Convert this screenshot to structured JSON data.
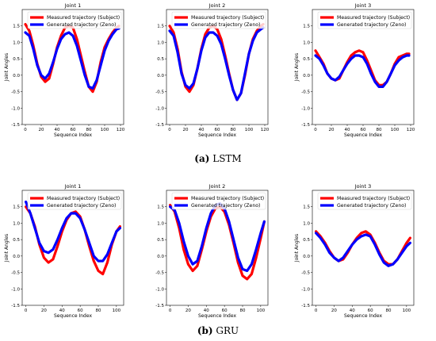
{
  "captions": [
    {
      "tag": "(a)",
      "text": "LSTM"
    },
    {
      "tag": "(b)",
      "text": "GRU"
    }
  ],
  "colors": {
    "measured": "#ff0000",
    "generated": "#0000ff"
  },
  "chart_data": [
    {
      "type": "line",
      "title": "Joint 1",
      "xlabel": "Sequence Index",
      "ylabel": "Joint Angles",
      "xlim": [
        -4,
        124
      ],
      "ylim": [
        -1.5,
        2.0
      ],
      "xticks": [
        0,
        20,
        40,
        60,
        80,
        100,
        120
      ],
      "yticks": [
        -1.5,
        -1.0,
        -0.5,
        0.0,
        0.5,
        1.0,
        1.5
      ],
      "series": [
        {
          "name": "Measured trajectory (Subject)",
          "x": [
            0,
            5,
            10,
            15,
            20,
            25,
            30,
            35,
            40,
            45,
            50,
            55,
            60,
            65,
            70,
            75,
            80,
            85,
            90,
            95,
            100,
            105,
            110,
            115,
            118
          ],
          "values": [
            1.55,
            1.35,
            0.9,
            0.35,
            -0.05,
            -0.2,
            -0.1,
            0.35,
            0.85,
            1.2,
            1.45,
            1.5,
            1.45,
            1.1,
            0.6,
            0.1,
            -0.35,
            -0.5,
            -0.2,
            0.4,
            0.85,
            1.1,
            1.3,
            1.45,
            1.5
          ]
        },
        {
          "name": "Generated trajectory (Zeno)",
          "x": [
            0,
            5,
            10,
            15,
            20,
            25,
            30,
            35,
            40,
            45,
            50,
            55,
            60,
            65,
            70,
            75,
            80,
            85,
            90,
            95,
            100,
            105,
            110,
            115,
            118
          ],
          "values": [
            1.3,
            1.2,
            0.8,
            0.3,
            0.0,
            -0.1,
            0.05,
            0.4,
            0.8,
            1.1,
            1.25,
            1.3,
            1.2,
            0.9,
            0.45,
            0.0,
            -0.35,
            -0.4,
            -0.15,
            0.3,
            0.75,
            1.05,
            1.25,
            1.4,
            1.42
          ]
        }
      ],
      "legend": "top"
    },
    {
      "type": "line",
      "title": "Joint 2",
      "xlabel": "Sequence Index",
      "ylabel": "",
      "xlim": [
        -4,
        124
      ],
      "ylim": [
        -1.5,
        2.0
      ],
      "xticks": [
        0,
        20,
        40,
        60,
        80,
        100,
        120
      ],
      "yticks": [
        -1.5,
        -1.0,
        -0.5,
        0.0,
        0.5,
        1.0,
        1.5
      ],
      "series": [
        {
          "name": "Measured trajectory (Subject)",
          "x": [
            0,
            5,
            10,
            15,
            20,
            25,
            30,
            35,
            40,
            45,
            50,
            55,
            60,
            65,
            70,
            75,
            80,
            85,
            90,
            95,
            100,
            105,
            110,
            115,
            118
          ],
          "values": [
            1.5,
            1.3,
            0.8,
            0.1,
            -0.35,
            -0.5,
            -0.3,
            0.2,
            0.8,
            1.25,
            1.45,
            1.5,
            1.4,
            1.1,
            0.6,
            0.05,
            -0.45,
            -0.75,
            -0.55,
            0.0,
            0.65,
            1.1,
            1.35,
            1.5,
            1.55
          ]
        },
        {
          "name": "Generated trajectory (Zeno)",
          "x": [
            0,
            5,
            10,
            15,
            20,
            25,
            30,
            35,
            40,
            45,
            50,
            55,
            60,
            65,
            70,
            75,
            80,
            85,
            90,
            95,
            100,
            105,
            110,
            115,
            118
          ],
          "values": [
            1.35,
            1.2,
            0.7,
            0.05,
            -0.3,
            -0.4,
            -0.25,
            0.2,
            0.75,
            1.15,
            1.3,
            1.3,
            1.2,
            0.95,
            0.5,
            0.0,
            -0.45,
            -0.75,
            -0.55,
            0.05,
            0.65,
            1.05,
            1.3,
            1.4,
            1.45
          ]
        }
      ],
      "legend": "top"
    },
    {
      "type": "line",
      "title": "Joint 3",
      "xlabel": "Sequence Index",
      "ylabel": "Joint Angles",
      "xlim": [
        -4,
        124
      ],
      "ylim": [
        -1.5,
        2.0
      ],
      "xticks": [
        0,
        20,
        40,
        60,
        80,
        100,
        120
      ],
      "yticks": [
        -1.5,
        -1.0,
        -0.5,
        0.0,
        0.5,
        1.0,
        1.5
      ],
      "series": [
        {
          "name": "Measured trajectory (Subject)",
          "x": [
            0,
            5,
            10,
            15,
            20,
            25,
            30,
            35,
            40,
            45,
            50,
            55,
            60,
            65,
            70,
            75,
            80,
            85,
            90,
            95,
            100,
            105,
            110,
            115,
            118
          ],
          "values": [
            0.75,
            0.55,
            0.35,
            0.05,
            -0.1,
            -0.15,
            -0.1,
            0.15,
            0.4,
            0.6,
            0.7,
            0.75,
            0.7,
            0.45,
            0.15,
            -0.15,
            -0.3,
            -0.3,
            -0.2,
            0.05,
            0.35,
            0.55,
            0.6,
            0.65,
            0.65
          ]
        },
        {
          "name": "Generated trajectory (Zeno)",
          "x": [
            0,
            5,
            10,
            15,
            20,
            25,
            30,
            35,
            40,
            45,
            50,
            55,
            60,
            65,
            70,
            75,
            80,
            85,
            90,
            95,
            100,
            105,
            110,
            115,
            118
          ],
          "values": [
            0.6,
            0.5,
            0.3,
            0.05,
            -0.1,
            -0.15,
            -0.05,
            0.15,
            0.35,
            0.5,
            0.6,
            0.6,
            0.55,
            0.35,
            0.05,
            -0.2,
            -0.35,
            -0.35,
            -0.2,
            0.05,
            0.3,
            0.45,
            0.55,
            0.6,
            0.6
          ]
        }
      ],
      "legend": "top"
    },
    {
      "type": "line",
      "title": "Joint 1",
      "xlabel": "Sequence Index",
      "ylabel": "Joint Angles",
      "xlim": [
        -4,
        108
      ],
      "ylim": [
        -1.5,
        2.0
      ],
      "xticks": [
        0,
        20,
        40,
        60,
        80,
        100
      ],
      "yticks": [
        -1.5,
        -1.0,
        -0.5,
        0.0,
        0.5,
        1.0,
        1.5
      ],
      "series": [
        {
          "name": "Measured trajectory (Subject)",
          "x": [
            0,
            5,
            10,
            15,
            20,
            25,
            30,
            35,
            40,
            45,
            50,
            55,
            60,
            65,
            70,
            75,
            80,
            85,
            90,
            95,
            100,
            104
          ],
          "values": [
            1.5,
            1.3,
            0.9,
            0.35,
            -0.05,
            -0.2,
            -0.1,
            0.3,
            0.75,
            1.1,
            1.3,
            1.35,
            1.2,
            0.8,
            0.3,
            -0.15,
            -0.45,
            -0.55,
            -0.2,
            0.35,
            0.75,
            0.9
          ]
        },
        {
          "name": "Generated trajectory (Zeno)",
          "x": [
            0,
            5,
            10,
            15,
            20,
            25,
            30,
            35,
            40,
            45,
            50,
            55,
            60,
            65,
            70,
            75,
            80,
            85,
            90,
            95,
            100,
            104
          ],
          "values": [
            1.65,
            1.3,
            0.85,
            0.4,
            0.15,
            0.1,
            0.2,
            0.5,
            0.85,
            1.15,
            1.3,
            1.3,
            1.15,
            0.8,
            0.4,
            0.0,
            -0.15,
            -0.15,
            0.05,
            0.4,
            0.75,
            0.85
          ]
        }
      ],
      "legend": "top"
    },
    {
      "type": "line",
      "title": "Joint 2",
      "xlabel": "Sequence Index",
      "ylabel": "",
      "xlim": [
        -4,
        108
      ],
      "ylim": [
        -1.5,
        2.0
      ],
      "xticks": [
        0,
        20,
        40,
        60,
        80,
        100
      ],
      "yticks": [
        -1.5,
        -1.0,
        -0.5,
        0.0,
        0.5,
        1.0,
        1.5
      ],
      "series": [
        {
          "name": "Measured trajectory (Subject)",
          "x": [
            0,
            5,
            10,
            15,
            20,
            25,
            30,
            35,
            40,
            45,
            50,
            55,
            60,
            65,
            70,
            75,
            80,
            85,
            90,
            95,
            100,
            104
          ],
          "values": [
            1.55,
            1.35,
            0.85,
            0.2,
            -0.25,
            -0.45,
            -0.3,
            0.2,
            0.75,
            1.2,
            1.45,
            1.5,
            1.35,
            0.95,
            0.4,
            -0.2,
            -0.6,
            -0.7,
            -0.55,
            -0.05,
            0.55,
            1.05
          ]
        },
        {
          "name": "Generated trajectory (Zeno)",
          "x": [
            0,
            5,
            10,
            15,
            20,
            25,
            30,
            35,
            40,
            45,
            50,
            55,
            60,
            65,
            70,
            75,
            80,
            85,
            90,
            95,
            100,
            104
          ],
          "values": [
            1.5,
            1.4,
            1.0,
            0.45,
            0.0,
            -0.25,
            -0.15,
            0.3,
            0.85,
            1.3,
            1.55,
            1.6,
            1.45,
            1.05,
            0.5,
            -0.05,
            -0.4,
            -0.45,
            -0.25,
            0.2,
            0.7,
            1.05
          ]
        }
      ],
      "legend": "top"
    },
    {
      "type": "line",
      "title": "Joint 3",
      "xlabel": "Sequence Index",
      "ylabel": "Joint Angles",
      "xlim": [
        -4,
        108
      ],
      "ylim": [
        -1.5,
        2.0
      ],
      "xticks": [
        0,
        20,
        40,
        60,
        80,
        100
      ],
      "yticks": [
        -1.5,
        -1.0,
        -0.5,
        0.0,
        0.5,
        1.0,
        1.5
      ],
      "series": [
        {
          "name": "Measured trajectory (Subject)",
          "x": [
            0,
            5,
            10,
            15,
            20,
            25,
            30,
            35,
            40,
            45,
            50,
            55,
            60,
            65,
            70,
            75,
            80,
            85,
            90,
            95,
            100,
            104
          ],
          "values": [
            0.75,
            0.6,
            0.4,
            0.15,
            -0.05,
            -0.15,
            -0.1,
            0.1,
            0.35,
            0.55,
            0.7,
            0.75,
            0.65,
            0.4,
            0.1,
            -0.15,
            -0.25,
            -0.25,
            -0.1,
            0.15,
            0.4,
            0.55
          ]
        },
        {
          "name": "Generated trajectory (Zeno)",
          "x": [
            0,
            5,
            10,
            15,
            20,
            25,
            30,
            35,
            40,
            45,
            50,
            55,
            60,
            65,
            70,
            75,
            80,
            85,
            90,
            95,
            100,
            104
          ],
          "values": [
            0.7,
            0.55,
            0.35,
            0.1,
            -0.05,
            -0.15,
            -0.05,
            0.15,
            0.35,
            0.5,
            0.6,
            0.65,
            0.6,
            0.35,
            0.05,
            -0.2,
            -0.3,
            -0.25,
            -0.1,
            0.1,
            0.3,
            0.4
          ]
        }
      ],
      "legend": "top"
    }
  ]
}
